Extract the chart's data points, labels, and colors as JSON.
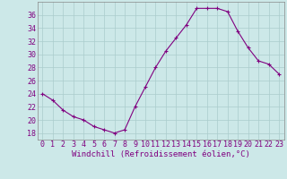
{
  "x": [
    0,
    1,
    2,
    3,
    4,
    5,
    6,
    7,
    8,
    9,
    10,
    11,
    12,
    13,
    14,
    15,
    16,
    17,
    18,
    19,
    20,
    21,
    22,
    23
  ],
  "y": [
    24,
    23,
    21.5,
    20.5,
    20,
    19,
    18.5,
    18,
    18.5,
    22,
    25,
    28,
    30.5,
    32.5,
    34.5,
    37,
    37,
    37,
    36.5,
    33.5,
    31,
    29,
    28.5,
    27
  ],
  "line_color": "#800080",
  "marker": "+",
  "marker_color": "#800080",
  "bg_color": "#cce8e8",
  "grid_color": "#aacccc",
  "xlabel": "Windchill (Refroidissement éolien,°C)",
  "xlabel_color": "#800080",
  "xlabel_fontsize": 6.5,
  "tick_color": "#800080",
  "tick_fontsize": 6,
  "ylim": [
    17,
    38
  ],
  "yticks": [
    18,
    20,
    22,
    24,
    26,
    28,
    30,
    32,
    34,
    36
  ],
  "xlim": [
    -0.5,
    23.5
  ],
  "xticks": [
    0,
    1,
    2,
    3,
    4,
    5,
    6,
    7,
    8,
    9,
    10,
    11,
    12,
    13,
    14,
    15,
    16,
    17,
    18,
    19,
    20,
    21,
    22,
    23
  ],
  "spine_color": "#888888"
}
